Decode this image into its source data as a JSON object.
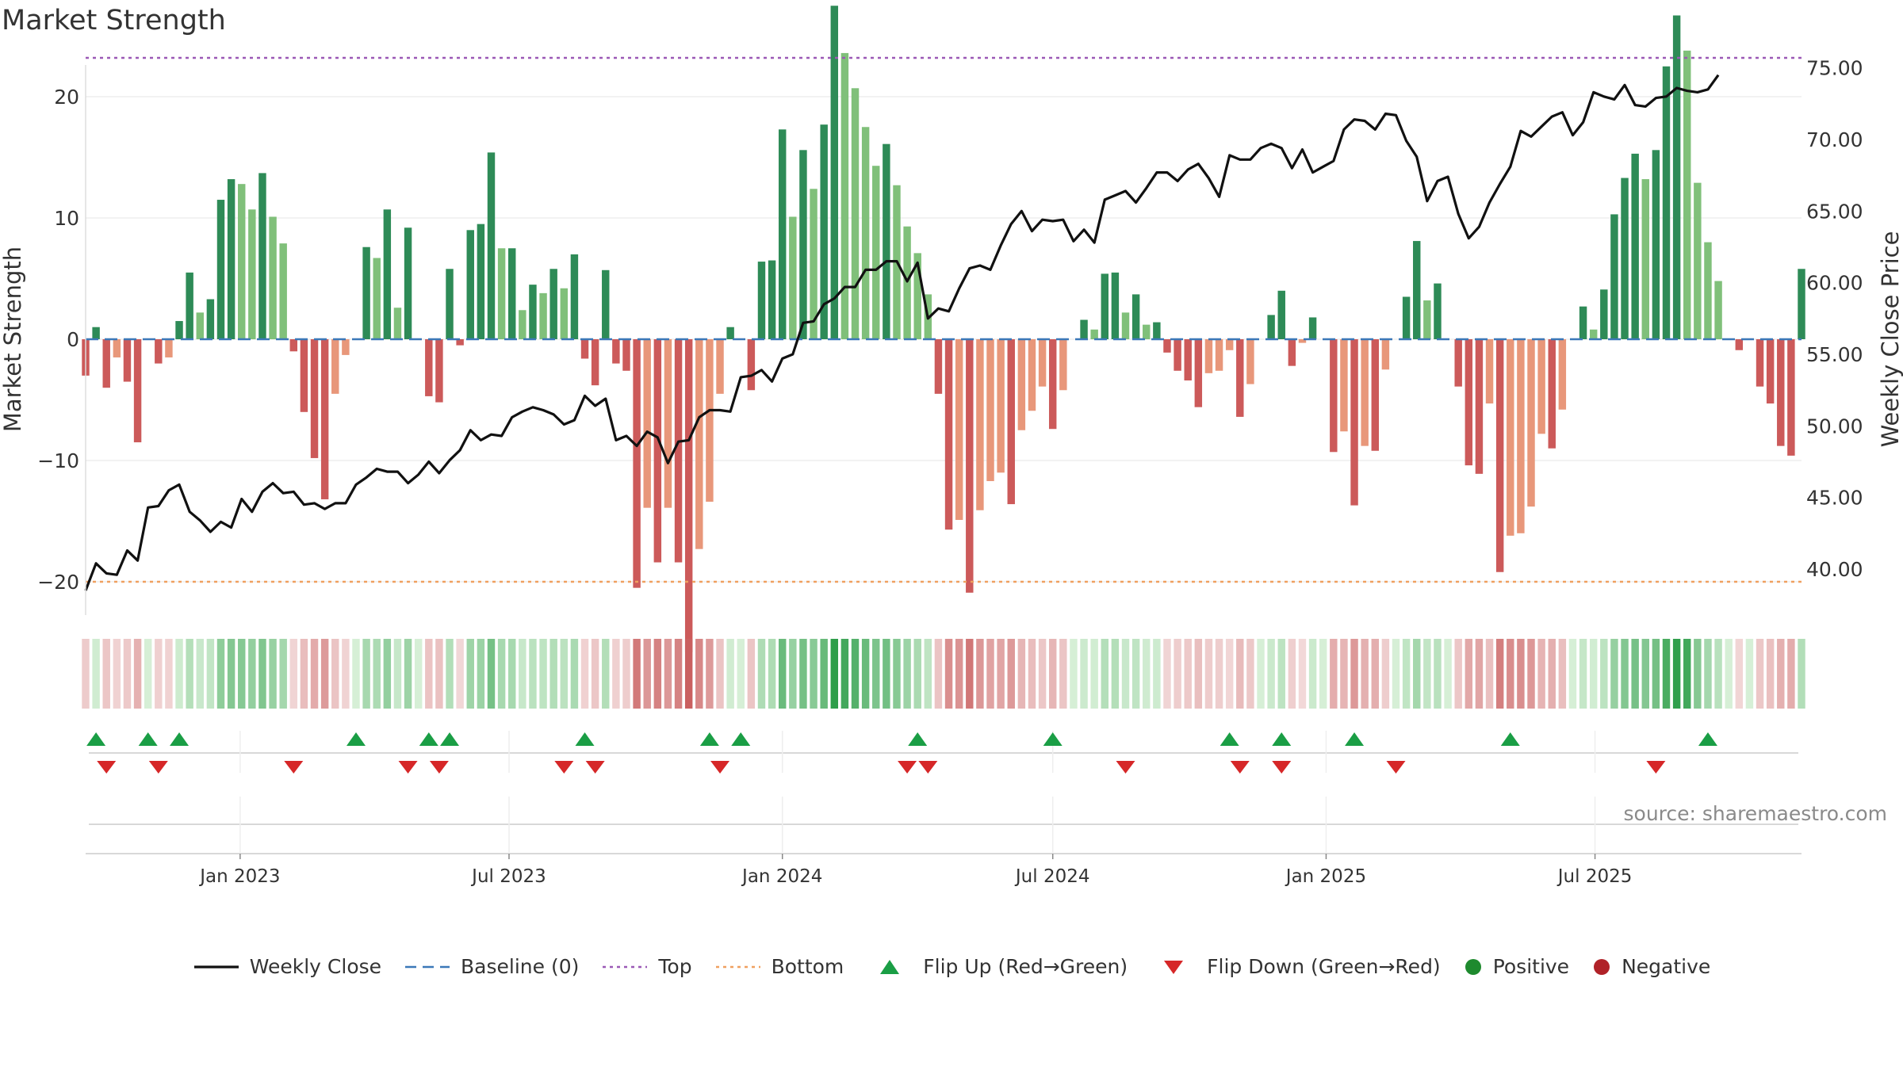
{
  "chart_data": {
    "type": "bar+line",
    "title": "Market Strength",
    "source_note": "source: sharemaestro.com",
    "left_axis": {
      "label": "Market Strength",
      "ticks": [
        -20,
        -10,
        0,
        10,
        20
      ],
      "tick_labels": [
        "−20",
        "−10",
        "0",
        "10",
        "20"
      ],
      "range": [
        -29.5,
        29.5
      ]
    },
    "right_axis": {
      "label": "Weekly Close Price",
      "ticks": [
        40,
        45,
        50,
        55,
        60,
        65,
        70,
        75
      ],
      "tick_labels": [
        "40.00",
        "45.00",
        "50.00",
        "55.00",
        "60.00",
        "65.00",
        "70.00",
        "75.00"
      ],
      "range": [
        36.0,
        76.0
      ]
    },
    "x_axis": {
      "start_date": "2022-09-19",
      "tick_labels": [
        {
          "label": "Jan 2023",
          "date": "2023-01-01"
        },
        {
          "label": "Jul 2023",
          "date": "2023-07-01"
        },
        {
          "label": "Jan 2024",
          "date": "2024-01-01"
        },
        {
          "label": "Jul 2024",
          "date": "2024-07-01"
        },
        {
          "label": "Jan 2025",
          "date": "2025-01-01"
        },
        {
          "label": "Jul 2025",
          "date": "2025-07-01"
        }
      ]
    },
    "reference_lines": {
      "top": 23.2,
      "bottom": -20
    },
    "strength": [
      -3,
      1,
      -4,
      -1.5,
      -3.5,
      -8.5,
      0,
      -2,
      -1.5,
      1.5,
      5.5,
      2.2,
      3.3,
      11.5,
      13.2,
      12.8,
      10.7,
      13.7,
      10.1,
      7.9,
      -1,
      -6,
      -9.8,
      -13.2,
      -4.5,
      -1.3,
      0,
      7.6,
      6.7,
      10.7,
      2.6,
      9.2,
      0,
      -4.7,
      -5.2,
      5.8,
      -0.5,
      9,
      9.5,
      15.4,
      7.5,
      7.5,
      2.4,
      4.5,
      3.8,
      5.8,
      4.2,
      7,
      -1.6,
      -3.8,
      5.7,
      -2,
      -2.6,
      -20.5,
      -13.9,
      -18.4,
      -13.9,
      -18.4,
      -25.8,
      -17.3,
      -13.4,
      -4.5,
      1,
      0,
      -4.2,
      6.4,
      6.5,
      17.3,
      10.1,
      15.6,
      12.4,
      17.7,
      27.5,
      23.6,
      20.7,
      17.5,
      14.3,
      16.1,
      12.7,
      9.3,
      7.1,
      3.7,
      -4.5,
      -15.7,
      -14.9,
      -20.9,
      -14.1,
      -11.7,
      -11,
      -13.6,
      -7.5,
      -5.9,
      -3.9,
      -7.4,
      -4.2,
      0,
      1.6,
      0.8,
      5.4,
      5.5,
      2.2,
      3.7,
      1.2,
      1.4,
      -1.1,
      -2.6,
      -3.4,
      -5.6,
      -2.8,
      -2.6,
      -0.9,
      -6.4,
      -3.7,
      0,
      2,
      4,
      -2.2,
      -0.3,
      1.8,
      0,
      -9.3,
      -7.6,
      -13.7,
      -8.8,
      -9.2,
      -2.5,
      0,
      3.5,
      8.1,
      3.2,
      4.6,
      0,
      -3.9,
      -10.4,
      -11.1,
      -5.3,
      -19.2,
      -16.2,
      -16,
      -13.8,
      -7.8,
      -9,
      -5.8,
      0,
      2.7,
      0.8,
      4.1,
      10.3,
      13.3,
      15.3,
      13.2,
      15.6,
      22.5,
      26.7,
      23.8,
      12.9,
      8,
      4.8,
      0,
      -0.9,
      0,
      -3.9,
      -5.3,
      -8.8,
      -9.6,
      5.8
    ],
    "weekly_close": [
      38.5,
      40.4,
      39.7,
      39.6,
      41.3,
      40.6,
      44.3,
      44.4,
      45.5,
      45.9,
      44.0,
      43.4,
      42.6,
      43.3,
      42.9,
      44.9,
      44.0,
      45.4,
      46.0,
      45.3,
      45.4,
      44.5,
      44.6,
      44.2,
      44.6,
      44.6,
      45.9,
      46.4,
      47.0,
      46.8,
      46.8,
      46.0,
      46.6,
      47.5,
      46.7,
      47.6,
      48.3,
      49.7,
      49.0,
      49.4,
      49.3,
      50.6,
      51.0,
      51.3,
      51.1,
      50.8,
      50.1,
      50.4,
      52.1,
      51.4,
      51.9,
      49.0,
      49.3,
      48.6,
      49.6,
      49.2,
      47.4,
      48.9,
      49.0,
      50.6,
      51.1,
      51.1,
      51.0,
      53.4,
      53.5,
      53.9,
      53.1,
      54.7,
      55.0,
      57.2,
      57.3,
      58.5,
      58.9,
      59.7,
      59.7,
      60.9,
      60.9,
      61.5,
      61.5,
      60.1,
      61.4,
      57.5,
      58.2,
      58.0,
      59.6,
      61.0,
      61.2,
      60.9,
      62.6,
      64.1,
      65.0,
      63.6,
      64.4,
      64.3,
      64.4,
      62.9,
      63.7,
      62.8,
      65.8,
      66.1,
      66.4,
      65.6,
      66.6,
      67.7,
      67.7,
      67.1,
      67.9,
      68.3,
      67.3,
      66.0,
      68.9,
      68.6,
      68.6,
      69.4,
      69.7,
      69.4,
      68.0,
      69.3,
      67.7,
      68.1,
      68.5,
      70.7,
      71.4,
      71.3,
      70.7,
      71.8,
      71.7,
      69.9,
      68.8,
      65.7,
      67.1,
      67.4,
      64.8,
      63.1,
      63.9,
      65.6,
      66.9,
      68.1,
      70.6,
      70.2,
      70.9,
      71.6,
      71.9,
      70.3,
      71.2,
      73.3,
      73.0,
      72.8,
      73.8,
      72.4,
      72.3,
      72.9,
      73.0,
      73.6,
      73.4,
      73.3,
      73.5,
      74.5
    ],
    "flip_up": [
      1,
      6,
      9,
      26,
      33,
      35,
      48,
      60,
      63,
      80,
      93,
      110,
      115,
      122,
      137,
      156
    ],
    "flip_down": [
      2,
      7,
      20,
      31,
      34,
      46,
      49,
      61,
      79,
      81,
      100,
      111,
      115,
      126,
      151
    ],
    "legend": [
      {
        "key": "close",
        "label": "Weekly Close",
        "color": "#111111"
      },
      {
        "key": "baseline",
        "label": "Baseline (0)",
        "color": "#3b78b8"
      },
      {
        "key": "top",
        "label": "Top",
        "color": "#9b59b6"
      },
      {
        "key": "bottom",
        "label": "Bottom",
        "color": "#f0a060"
      },
      {
        "key": "flipup",
        "label": "Flip Up (Red→Green)",
        "color": "#1a9e45"
      },
      {
        "key": "flipdown",
        "label": "Flip Down (Green→Red)",
        "color": "#d62728"
      },
      {
        "key": "positive",
        "label": "Positive",
        "color": "#1e8a2e"
      },
      {
        "key": "negative",
        "label": "Negative",
        "color": "#b02228"
      }
    ]
  }
}
